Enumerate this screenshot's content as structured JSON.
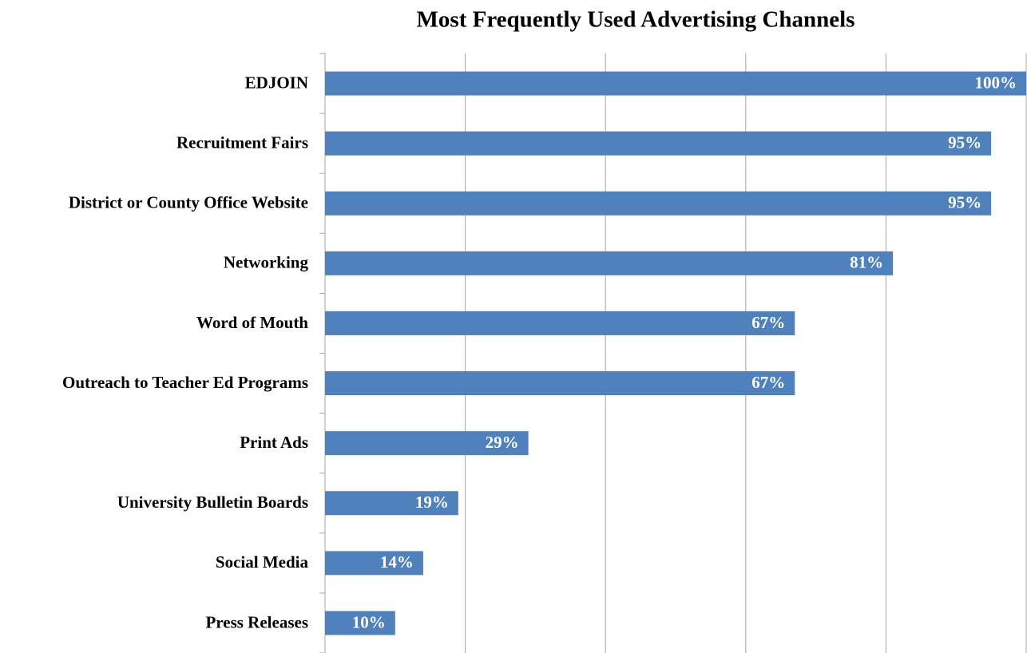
{
  "chart_data": {
    "type": "hbar",
    "title": "Most Frequently Used Advertising Channels",
    "categories": [
      "EDJOIN",
      "Recruitment Fairs",
      "District or County Office Website",
      "Networking",
      "Word of Mouth",
      "Outreach to Teacher Ed Programs",
      "Print Ads",
      "University Bulletin Boards",
      "Social Media",
      "Press Releases"
    ],
    "values": [
      100,
      95,
      95,
      81,
      67,
      67,
      29,
      19,
      14,
      10
    ],
    "value_labels": [
      "100%",
      "95%",
      "95%",
      "81%",
      "67%",
      "67%",
      "29%",
      "19%",
      "14%",
      "10%"
    ],
    "color": "#4f81bd",
    "xlim": [
      0,
      100
    ],
    "xticks": [
      0,
      20,
      40,
      60,
      80,
      100
    ],
    "grid": true
  }
}
